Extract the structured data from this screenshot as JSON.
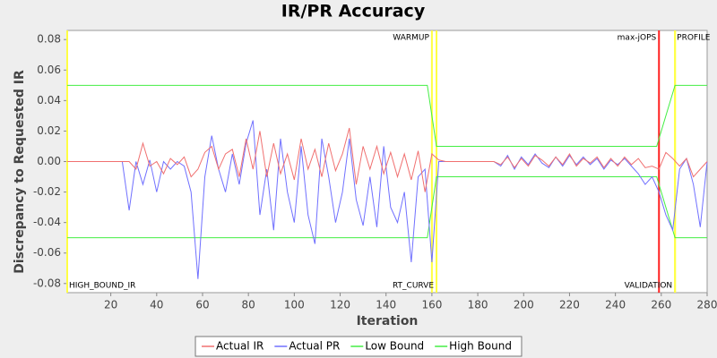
{
  "chart_data": {
    "type": "line",
    "title": "IR/PR Accuracy",
    "x_label": "Iteration",
    "y_label": "Discrepancy to Requested IR",
    "xlim": [
      1,
      280
    ],
    "ylim": [
      -0.086,
      0.086
    ],
    "xticks": [
      20,
      40,
      60,
      80,
      100,
      120,
      140,
      160,
      180,
      200,
      220,
      240,
      260,
      280
    ],
    "yticks": [
      -0.08,
      -0.06,
      -0.04,
      -0.02,
      {
        "value": 0,
        "label": "0.00"
      },
      0.02,
      0.04,
      0.06,
      0.08
    ],
    "grid": false,
    "legend": "bottom",
    "series": [
      {
        "name": "Actual IR",
        "color": "#f07070",
        "x": [
          1,
          4,
          7,
          10,
          13,
          16,
          19,
          22,
          25,
          28,
          31,
          34,
          37,
          40,
          43,
          46,
          49,
          52,
          55,
          58,
          61,
          64,
          67,
          70,
          73,
          76,
          79,
          82,
          85,
          88,
          91,
          94,
          97,
          100,
          103,
          106,
          109,
          112,
          115,
          118,
          121,
          124,
          127,
          130,
          133,
          136,
          139,
          142,
          145,
          148,
          151,
          154,
          157,
          160,
          163,
          166,
          169,
          172,
          175,
          178,
          181,
          184,
          187,
          190,
          193,
          196,
          199,
          202,
          205,
          208,
          211,
          214,
          217,
          220,
          223,
          226,
          229,
          232,
          235,
          238,
          241,
          244,
          247,
          250,
          253,
          256,
          259,
          262,
          265,
          268,
          271,
          274,
          277,
          280
        ],
        "values": [
          0,
          0,
          0,
          0,
          0,
          0,
          0,
          0,
          0,
          0,
          -0.005,
          0.012,
          -0.003,
          0,
          -0.008,
          0.002,
          -0.002,
          0.003,
          -0.01,
          -0.005,
          0.006,
          0.01,
          -0.005,
          0.005,
          0.008,
          -0.01,
          0.015,
          -0.005,
          0.02,
          -0.01,
          0.012,
          -0.008,
          0.005,
          -0.012,
          0.015,
          -0.005,
          0.008,
          -0.01,
          0.012,
          -0.006,
          0.005,
          0.022,
          -0.015,
          0.01,
          -0.005,
          0.01,
          -0.008,
          0.006,
          -0.01,
          0.005,
          -0.012,
          0.007,
          -0.02,
          0.005,
          0.001,
          0,
          0,
          0,
          0,
          0,
          0,
          0,
          0,
          -0.002,
          0.003,
          -0.004,
          0.002,
          -0.003,
          0.004,
          0.001,
          -0.003,
          0.003,
          -0.002,
          0.005,
          -0.003,
          0.002,
          -0.001,
          0.003,
          -0.004,
          0.002,
          -0.003,
          0.003,
          -0.002,
          0.002,
          -0.004,
          -0.003,
          -0.005,
          0.006,
          0.002,
          -0.003,
          0.002,
          -0.01,
          -0.005,
          0
        ]
      },
      {
        "name": "Actual PR",
        "color": "#7070ff",
        "x": [
          1,
          4,
          7,
          10,
          13,
          16,
          19,
          22,
          25,
          28,
          31,
          34,
          37,
          40,
          43,
          46,
          49,
          52,
          55,
          58,
          61,
          64,
          67,
          70,
          73,
          76,
          79,
          82,
          85,
          88,
          91,
          94,
          97,
          100,
          103,
          106,
          109,
          112,
          115,
          118,
          121,
          124,
          127,
          130,
          133,
          136,
          139,
          142,
          145,
          148,
          151,
          154,
          157,
          160,
          163,
          166,
          169,
          172,
          175,
          178,
          181,
          184,
          187,
          190,
          193,
          196,
          199,
          202,
          205,
          208,
          211,
          214,
          217,
          220,
          223,
          226,
          229,
          232,
          235,
          238,
          241,
          244,
          247,
          250,
          253,
          256,
          259,
          262,
          265,
          268,
          271,
          274,
          277,
          280
        ],
        "values": [
          0,
          0,
          0,
          0,
          0,
          0,
          0,
          0,
          0,
          -0.032,
          0,
          -0.015,
          0.001,
          -0.02,
          0,
          -0.005,
          0,
          -0.003,
          -0.02,
          -0.077,
          -0.01,
          0.017,
          -0.005,
          -0.02,
          0.005,
          -0.015,
          0.012,
          0.027,
          -0.035,
          -0.005,
          -0.045,
          0.015,
          -0.02,
          -0.04,
          0.01,
          -0.035,
          -0.054,
          0.015,
          -0.01,
          -0.04,
          -0.02,
          0.015,
          -0.025,
          -0.042,
          -0.01,
          -0.043,
          0.01,
          -0.03,
          -0.04,
          -0.02,
          -0.066,
          -0.01,
          -0.005,
          -0.066,
          0,
          0,
          0,
          0,
          0,
          0,
          0,
          0,
          0,
          -0.003,
          0.004,
          -0.005,
          0.003,
          -0.002,
          0.005,
          -0.001,
          -0.004,
          0.003,
          -0.003,
          0.004,
          -0.002,
          0.003,
          -0.002,
          0.002,
          -0.005,
          0.001,
          -0.002,
          0.002,
          -0.003,
          -0.008,
          -0.015,
          -0.01,
          -0.02,
          -0.035,
          -0.045,
          -0.005,
          0.002,
          -0.015,
          -0.043,
          0
        ]
      },
      {
        "name": "Low Bound",
        "color": "#44ee44",
        "x": [
          1,
          158,
          162,
          258,
          266,
          280
        ],
        "values": [
          -0.05,
          -0.05,
          -0.01,
          -0.01,
          -0.05,
          -0.05
        ]
      },
      {
        "name": "High Bound",
        "color": "#44ee44",
        "x": [
          1,
          158,
          162,
          258,
          266,
          280
        ],
        "values": [
          0.05,
          0.05,
          0.01,
          0.01,
          0.05,
          0.05
        ]
      }
    ],
    "markers": [
      {
        "label": "HIGH_BOUND_IR",
        "x": 1,
        "color": "#ffff44",
        "position": "bottom",
        "anchor": "start"
      },
      {
        "label": "WARMUP",
        "x": 160,
        "color": "#ffff44",
        "position": "top",
        "anchor": "end"
      },
      {
        "label": "RT_CURVE",
        "x": 162,
        "color": "#ffff44",
        "position": "bottom",
        "anchor": "end"
      },
      {
        "label": "max-jOPS",
        "x": 259,
        "color": "#ff2020",
        "position": "top",
        "anchor": "end"
      },
      {
        "label": "VALIDATION",
        "x": 266,
        "color": "#ffff44",
        "position": "bottom",
        "anchor": "end"
      },
      {
        "label": "PROFILE",
        "x": 266,
        "color": "#ffff44",
        "position": "top",
        "anchor": "start"
      }
    ]
  }
}
